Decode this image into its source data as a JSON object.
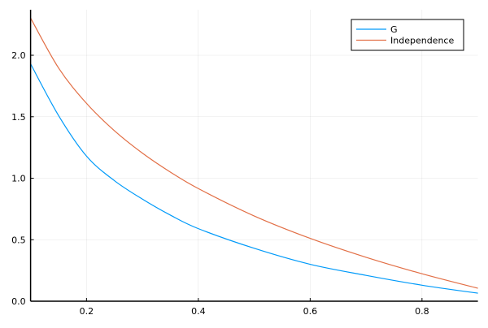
{
  "chart_data": {
    "type": "line",
    "title": "",
    "xlabel": "",
    "ylabel": "",
    "xlim": [
      0.1,
      0.9
    ],
    "ylim": [
      0,
      2.37
    ],
    "xticks": [
      0.2,
      0.4,
      0.6,
      0.8
    ],
    "xtick_labels": [
      "0.2",
      "0.4",
      "0.6",
      "0.8"
    ],
    "yticks": [
      0,
      0.5,
      1,
      1.5,
      2
    ],
    "ytick_labels": [
      "0.0",
      "0.5",
      "1.0",
      "1.5",
      "2.0"
    ],
    "grid": true,
    "legend_position": "top-right",
    "x": [
      0.1,
      0.15,
      0.2,
      0.25,
      0.3,
      0.35,
      0.4,
      0.5,
      0.6,
      0.7,
      0.8,
      0.9
    ],
    "series": [
      {
        "name": "G",
        "color": "#009af9",
        "values": [
          1.93,
          1.51,
          1.18,
          0.98,
          0.83,
          0.7,
          0.59,
          0.43,
          0.3,
          0.21,
          0.13,
          0.065
        ]
      },
      {
        "name": "Independence",
        "color": "#e26f46",
        "values": [
          2.303,
          1.897,
          1.609,
          1.386,
          1.204,
          1.05,
          0.916,
          0.693,
          0.511,
          0.357,
          0.223,
          0.105
        ]
      }
    ]
  }
}
